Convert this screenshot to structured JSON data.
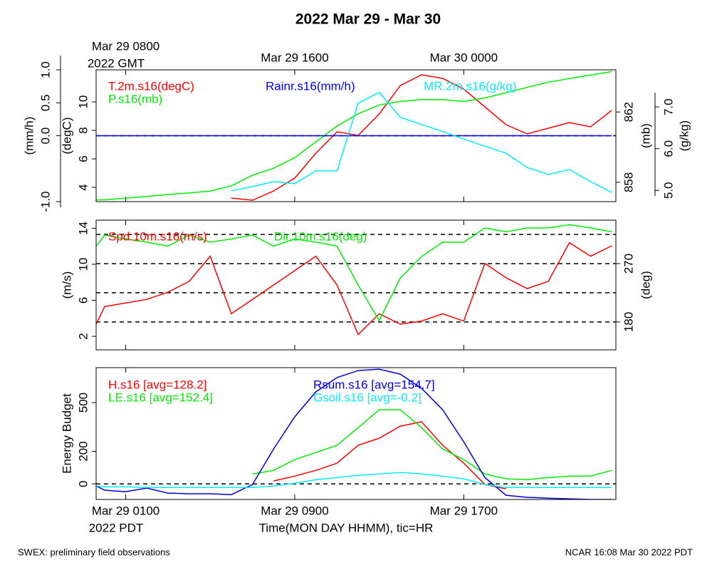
{
  "title": "2022 Mar 29 - Mar 30",
  "footer_left": "SWEX: preliminary field observations",
  "footer_right": "NCAR 16:08 Mar 30 2022 PDT",
  "chart_data": [
    {
      "type": "line",
      "x": [
        -1.4,
        -1,
        0,
        1,
        2,
        3,
        4,
        5,
        6,
        7,
        8,
        9,
        10,
        11,
        12,
        13,
        14,
        15,
        16,
        17,
        18,
        19,
        20,
        21,
        22,
        23
      ],
      "xlim": [
        -1.4,
        23.2
      ],
      "xticks": [
        {
          "value": 0,
          "label": "Mar 29 0800"
        },
        {
          "value": 8,
          "label": "Mar 29 1600"
        },
        {
          "value": 16,
          "label": "Mar 30 0000"
        }
      ],
      "xtick_labels": "top",
      "x_zone_label": "2022 GMT",
      "axes": [
        {
          "position": "left-outer",
          "label": "(mm/h)",
          "ylim": [
            -1,
            1
          ],
          "yticks": [
            {
              "value": -1,
              "label": "-1.0"
            },
            {
              "value": 0,
              "label": "0.0"
            },
            0.5,
            {
              "value": 1,
              "label": "1.0"
            }
          ],
          "dashed_lines": [
            0
          ]
        },
        {
          "position": "left",
          "label": "(degC)",
          "ylim": [
            3,
            12.25
          ],
          "yticks": [
            4,
            6,
            8,
            10
          ]
        },
        {
          "position": "right",
          "label": "(mb)",
          "ylim": [
            856.9,
            864.4
          ],
          "yticks": [
            858,
            862
          ]
        },
        {
          "position": "right-outer",
          "label": "(g/kg)",
          "ylim": [
            4.73,
            7.89
          ],
          "yticks": [
            {
              "value": 5,
              "label": "5.0"
            },
            {
              "value": 6,
              "label": "6.0"
            },
            {
              "value": 7,
              "label": "7.0"
            }
          ]
        }
      ],
      "series": [
        {
          "name": "T.2m.s16(degC)",
          "color": "#ff0000",
          "axis": 1,
          "values": [
            null,
            null,
            null,
            null,
            null,
            null,
            null,
            3.25,
            3.1,
            3.75,
            4.65,
            6.4,
            7.9,
            7.65,
            9.15,
            11.15,
            11.9,
            11.65,
            10.9,
            9.65,
            8.4,
            7.75,
            8.15,
            8.55,
            8.25,
            9.4
          ]
        },
        {
          "name": "P.s16(mb)",
          "color": "#00ee00",
          "axis": 2,
          "values": [
            857.0,
            857.0,
            857.1,
            857.2,
            857.3,
            857.4,
            857.5,
            857.8,
            858.4,
            858.8,
            859.4,
            860.3,
            861.2,
            861.9,
            862.4,
            862.6,
            862.7,
            862.7,
            862.6,
            862.8,
            863.1,
            863.4,
            863.7,
            863.9,
            864.1,
            864.3
          ]
        },
        {
          "name": "Rainr.s16(mm/h)",
          "color": "#0000ff",
          "axis": 0,
          "values": [
            0,
            0,
            0,
            0,
            0,
            0,
            0,
            0,
            0,
            0,
            0,
            0,
            0,
            0,
            0,
            0,
            0,
            0,
            0,
            0,
            0,
            0,
            0,
            0,
            0,
            0
          ]
        },
        {
          "name": "MR.2m.s16(g/kg)",
          "color": "#00eeff",
          "axis": 3,
          "values": [
            null,
            null,
            null,
            null,
            null,
            null,
            null,
            4.99,
            5.09,
            5.21,
            5.16,
            5.47,
            5.47,
            7.09,
            7.35,
            6.75,
            6.58,
            6.41,
            6.23,
            6.06,
            5.89,
            5.55,
            5.38,
            5.5,
            5.21,
            4.95
          ]
        }
      ]
    },
    {
      "type": "line",
      "x": [
        -1.4,
        -1,
        0,
        1,
        2,
        3,
        4,
        5,
        6,
        7,
        8,
        9,
        10,
        11,
        12,
        13,
        14,
        15,
        16,
        17,
        18,
        19,
        20,
        21,
        22,
        23
      ],
      "xlim": [
        -1.4,
        23.2
      ],
      "xticks": [
        0,
        8,
        16
      ],
      "xtick_labels": "none",
      "axes": [
        {
          "position": "left",
          "label": "(m/s)",
          "ylim": [
            0.5,
            14.9
          ],
          "yticks": [
            2,
            6,
            10,
            14
          ]
        },
        {
          "position": "right",
          "label": "(deg)",
          "ylim": [
            137,
            337
          ],
          "yticks": [
            180,
            270
          ],
          "dashed_lines": [
            180,
            225,
            270,
            315
          ]
        }
      ],
      "series": [
        {
          "name": "Spd.10m.s16(m/s)",
          "color": "#ff0000",
          "axis": 0,
          "values": [
            3.35,
            5.3,
            5.7,
            6.1,
            6.9,
            8.1,
            10.9,
            4.5,
            6.1,
            7.7,
            9.3,
            10.9,
            7.7,
            2.2,
            4.5,
            3.35,
            3.7,
            4.5,
            3.7,
            10.1,
            8.5,
            7.3,
            8.1,
            12.4,
            10.9,
            12.05
          ]
        },
        {
          "name": "Dir.10m.s16(deg)",
          "color": "#00ee00",
          "axis": 1,
          "values": [
            297,
            314,
            308,
            303,
            297,
            314,
            303,
            308,
            314,
            297,
            308,
            303,
            297,
            237,
            182,
            248,
            281,
            303,
            303,
            325,
            319,
            325,
            325,
            330,
            325,
            319
          ]
        }
      ]
    },
    {
      "type": "line",
      "x": [
        -1.4,
        -1,
        0,
        1,
        2,
        3,
        4,
        5,
        6,
        7,
        8,
        9,
        10,
        11,
        12,
        13,
        14,
        15,
        16,
        17,
        18,
        19,
        20,
        21,
        22,
        23
      ],
      "xlim": [
        -1.4,
        23.2
      ],
      "xticks": [
        {
          "value": 0,
          "label": "Mar 29 0100"
        },
        {
          "value": 8,
          "label": "Mar 29 0900"
        },
        {
          "value": 16,
          "label": "Mar 29 1700"
        }
      ],
      "xtick_labels": "bottom",
      "x_zone_label": "2022 PDT",
      "xlabel": "Time(MON DAY HHMM), tic=HR",
      "axes": [
        {
          "position": "left",
          "label": "Energy Budget",
          "ylim": [
            -96,
            715
          ],
          "yticks": [
            0,
            200,
            500
          ],
          "dashed_lines": [
            0
          ]
        }
      ],
      "series": [
        {
          "name": "H.s16 [avg=128.2]",
          "color": "#ff0000",
          "axis": 0,
          "values": [
            null,
            null,
            null,
            null,
            null,
            null,
            null,
            null,
            null,
            18,
            48,
            83,
            127,
            237,
            281,
            355,
            382,
            237,
            127,
            -4,
            -31,
            null,
            null,
            null,
            null,
            null
          ]
        },
        {
          "name": "LE.s16 [avg=152.4]",
          "color": "#00ee00",
          "axis": 0,
          "values": [
            null,
            null,
            null,
            null,
            null,
            null,
            null,
            null,
            61,
            83,
            149,
            193,
            237,
            346,
            456,
            456,
            346,
            215,
            149,
            61,
            31,
            26,
            39,
            48,
            48,
            83
          ]
        },
        {
          "name": "Rsum.s16 [avg=154.7]",
          "color": "#0000dd",
          "axis": 0,
          "values": [
            -13,
            -39,
            -48,
            -26,
            -57,
            -61,
            -61,
            -66,
            -4,
            215,
            412,
            566,
            654,
            697,
            706,
            675,
            588,
            456,
            259,
            39,
            -70,
            -83,
            -88,
            -92,
            -96,
            -96
          ]
        },
        {
          "name": "Gsoil.s16 [avg=-0.2]",
          "color": "#00eeff",
          "axis": 0,
          "values": [
            -13,
            -18,
            -18,
            -22,
            -22,
            -22,
            -22,
            -22,
            -22,
            -13,
            4,
            26,
            39,
            53,
            61,
            70,
            61,
            48,
            31,
            -4,
            -22,
            -22,
            -22,
            -22,
            -22,
            -22
          ]
        }
      ]
    }
  ]
}
